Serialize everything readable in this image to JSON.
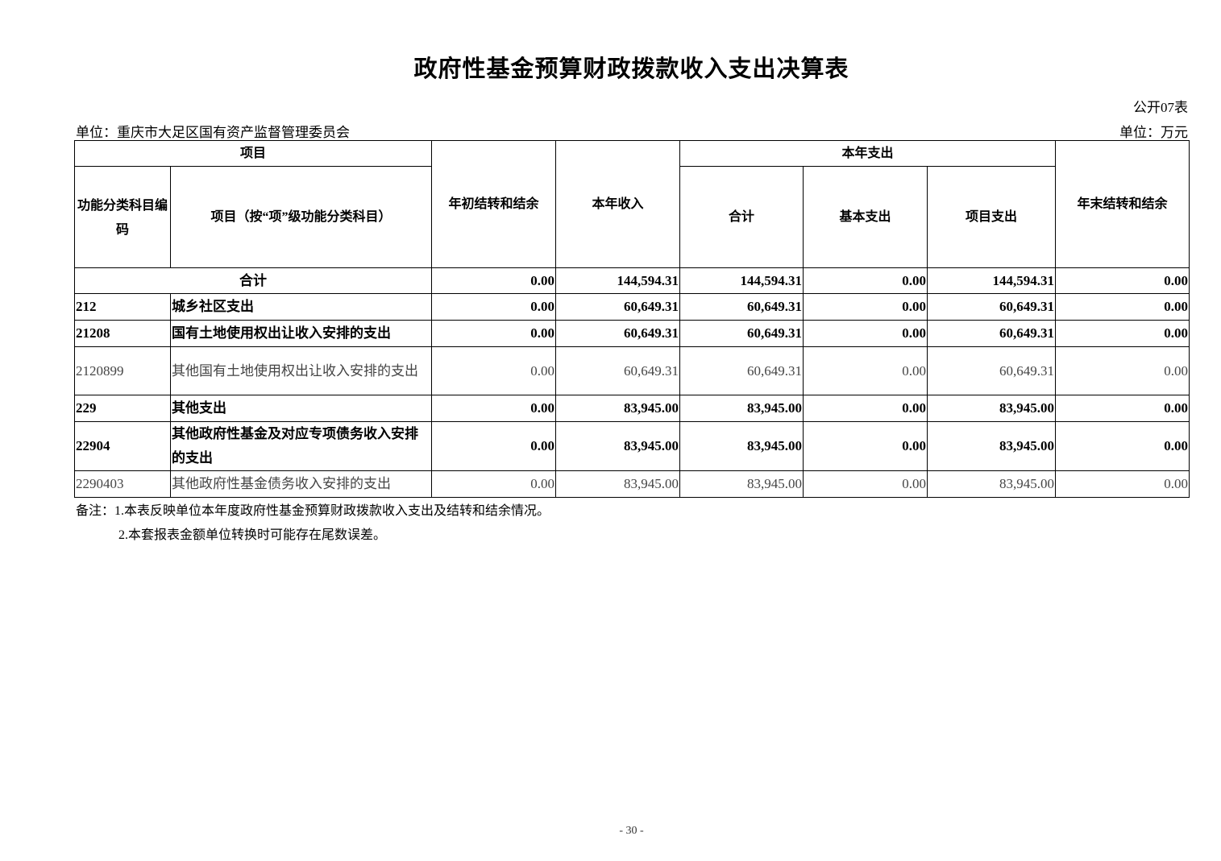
{
  "title": "政府性基金预算财政拨款收入支出决算表",
  "table_no": "公开07表",
  "unit_org": "单位：重庆市大足区国有资产监督管理委员会",
  "unit_money": "单位：万元",
  "headers": {
    "item": "项目",
    "code": "功能分类科目编码",
    "name": "项目（按“项”级功能分类科目）",
    "begin_balance": "年初结转和结余",
    "income": "本年收入",
    "expense": "本年支出",
    "exp_total": "合计",
    "exp_basic": "基本支出",
    "exp_project": "项目支出",
    "end_balance": "年末结转和结余"
  },
  "total": {
    "label": "合计",
    "values": [
      "0.00",
      "144,594.31",
      "144,594.31",
      "0.00",
      "144,594.31",
      "0.00"
    ]
  },
  "rows": [
    {
      "code": "212",
      "name": "城乡社区支出",
      "bold": true,
      "values": [
        "0.00",
        "60,649.31",
        "60,649.31",
        "0.00",
        "60,649.31",
        "0.00"
      ]
    },
    {
      "code": "21208",
      "name": "国有土地使用权出让收入安排的支出",
      "bold": true,
      "values": [
        "0.00",
        "60,649.31",
        "60,649.31",
        "0.00",
        "60,649.31",
        "0.00"
      ]
    },
    {
      "code": "2120899",
      "name": "其他国有土地使用权出让收入安排的支出",
      "bold": false,
      "values": [
        "0.00",
        "60,649.31",
        "60,649.31",
        "0.00",
        "60,649.31",
        "0.00"
      ]
    },
    {
      "code": "229",
      "name": "其他支出",
      "bold": true,
      "values": [
        "0.00",
        "83,945.00",
        "83,945.00",
        "0.00",
        "83,945.00",
        "0.00"
      ]
    },
    {
      "code": "22904",
      "name": "其他政府性基金及对应专项债务收入安排的支出",
      "bold": true,
      "values": [
        "0.00",
        "83,945.00",
        "83,945.00",
        "0.00",
        "83,945.00",
        "0.00"
      ]
    },
    {
      "code": "2290403",
      "name": "其他政府性基金债务收入安排的支出",
      "bold": false,
      "values": [
        "0.00",
        "83,945.00",
        "83,945.00",
        "0.00",
        "83,945.00",
        "0.00"
      ]
    }
  ],
  "notes": [
    "备注：1.本表反映单位本年度政府性基金预算财政拨款收入支出及结转和结余情况。",
    "2.本套报表金额单位转换时可能存在尾数误差。"
  ],
  "page_number": "- 30 -"
}
